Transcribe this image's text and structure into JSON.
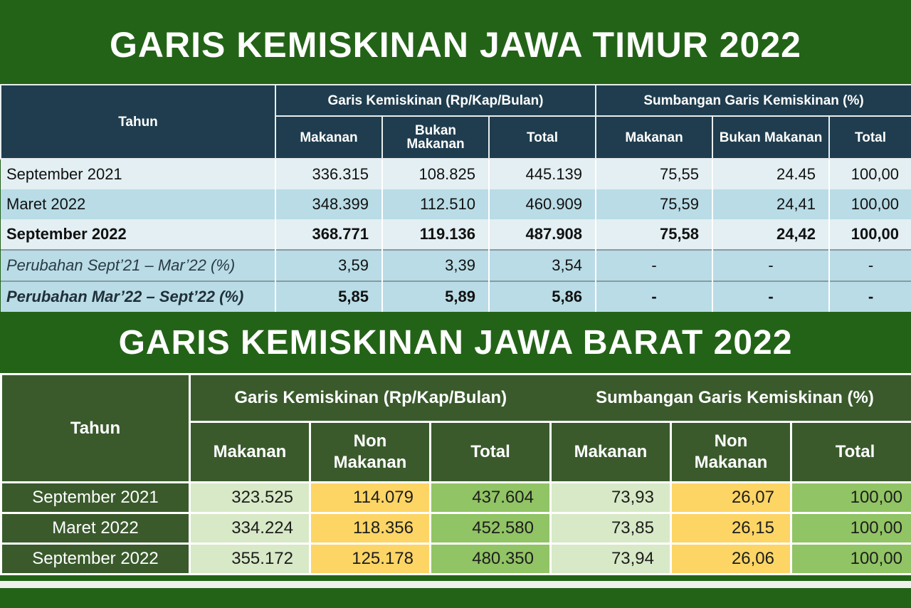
{
  "title_top": "GARIS KEMISKINAN JAWA TIMUR 2022",
  "title_bottom": "GARIS KEMISKINAN JAWA BARAT 2022",
  "jatim": {
    "header": {
      "tahun": "Tahun",
      "group_gk": "Garis Kemiskinan (Rp/Kap/Bulan)",
      "group_sgk": "Sumbangan Garis Kemiskinan (%)",
      "makanan": "Makanan",
      "bukan_makanan_1": "Bukan",
      "bukan_makanan_2": "Makanan",
      "total": "Total",
      "makanan_pct": "Makanan",
      "bukan_makanan_pct": "Bukan Makanan",
      "total_pct": "Total"
    },
    "rows": [
      {
        "label": "September 2021",
        "values": [
          "336.315",
          "108.825",
          "445.139",
          "75,55",
          "24.45",
          "100,00"
        ]
      },
      {
        "label": "Maret 2022",
        "values": [
          "348.399",
          "112.510",
          "460.909",
          "75,59",
          "24,41",
          "100,00"
        ]
      },
      {
        "label": "September 2022",
        "values": [
          "368.771",
          "119.136",
          "487.908",
          "75,58",
          "24,42",
          "100,00"
        ]
      },
      {
        "label": "Perubahan Sept’21 – Mar’22 (%)",
        "values": [
          "3,59",
          "3,39",
          "3,54",
          "-",
          "-",
          "-"
        ]
      },
      {
        "label": "Perubahan Mar’22 – Sept’22 (%)",
        "values": [
          "5,85",
          "5,89",
          "5,86",
          "-",
          "-",
          "-"
        ]
      }
    ]
  },
  "jabar": {
    "header": {
      "tahun": "Tahun",
      "group_gk": "Garis Kemiskinan (Rp/Kap/Bulan)",
      "group_sgk": "Sumbangan Garis Kemiskinan (%)",
      "makanan": "Makanan",
      "non_makanan_1": "Non",
      "non_makanan_2": "Makanan",
      "total": "Total",
      "makanan_pct": "Makanan",
      "non_makanan_pct_1": "Non",
      "non_makanan_pct_2": "Makanan",
      "total_pct": "Total"
    },
    "rows": [
      {
        "label": "September 2021",
        "values": [
          "323.525",
          "114.079",
          "437.604",
          "73,93",
          "26,07",
          "100,00"
        ]
      },
      {
        "label": "Maret 2022",
        "values": [
          "334.224",
          "118.356",
          "452.580",
          "73,85",
          "26,15",
          "100,00"
        ]
      },
      {
        "label": "September 2022",
        "values": [
          "355.172",
          "125.178",
          "480.350",
          "73,94",
          "26,06",
          "100,00"
        ]
      }
    ]
  },
  "colors": {
    "background": "#236317",
    "jatim_header": "#1f3d4e",
    "jabar_header": "#3a5a2c",
    "cell_light_green": "#d7e9c6",
    "cell_yellow": "#fdd565",
    "cell_green": "#91c464"
  }
}
